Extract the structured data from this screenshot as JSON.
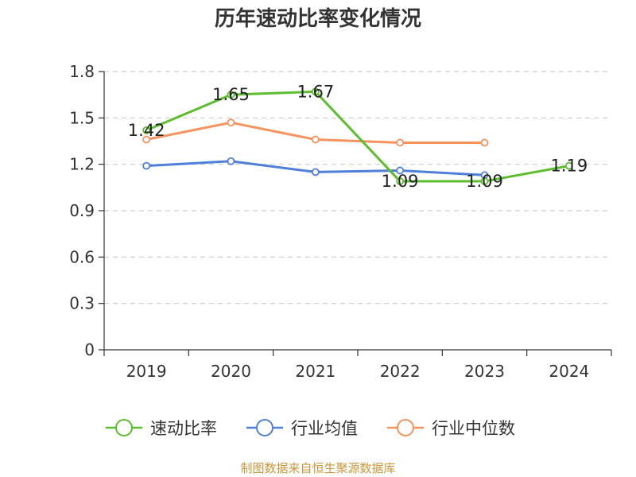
{
  "chart_data": {
    "type": "line",
    "title": "历年速动比率变化情况",
    "categories": [
      "2019",
      "2020",
      "2021",
      "2022",
      "2023",
      "2024"
    ],
    "y_ticks": [
      "0",
      "0.3",
      "0.6",
      "0.9",
      "1.2",
      "1.5",
      "1.8"
    ],
    "ylim": [
      0,
      1.8
    ],
    "grid": true,
    "legend_position": "bottom",
    "series": [
      {
        "name": "速动比率",
        "color": "#5dbd2e",
        "values": [
          1.42,
          1.65,
          1.67,
          1.09,
          1.09,
          1.19
        ],
        "labels": [
          "1.42",
          "1.65",
          "1.67",
          "1.09",
          "1.09",
          "1.19"
        ]
      },
      {
        "name": "行业均值",
        "color": "#4f7fd8",
        "values": [
          1.19,
          1.22,
          1.15,
          1.16,
          1.13,
          null
        ]
      },
      {
        "name": "行业中位数",
        "color": "#f5925e",
        "values": [
          1.36,
          1.47,
          1.36,
          1.34,
          1.34,
          null
        ]
      }
    ],
    "source": "制图数据来自恒生聚源数据库"
  }
}
